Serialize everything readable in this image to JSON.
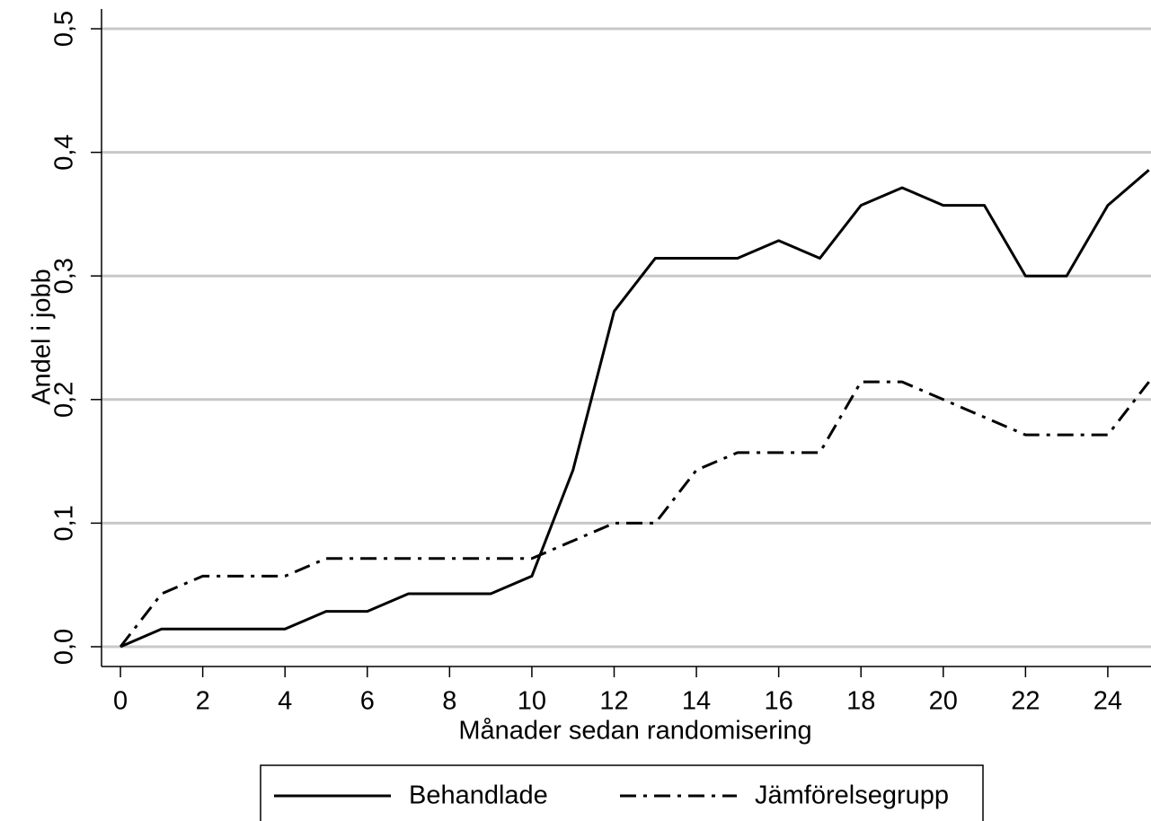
{
  "chart_data": {
    "type": "line",
    "x_label": "Månader sedan randomisering",
    "y_label": "Andel i jobb",
    "x": [
      0,
      1,
      2,
      3,
      4,
      5,
      6,
      7,
      8,
      9,
      10,
      11,
      12,
      13,
      14,
      15,
      16,
      17,
      18,
      19,
      20,
      21,
      22,
      23,
      24,
      25
    ],
    "series": [
      {
        "name": "Behandlade",
        "color": "#000000",
        "line_style": "solid",
        "values": [
          0,
          0.0143,
          0.0143,
          0.0143,
          0.0143,
          0.0286,
          0.0286,
          0.0429,
          0.0429,
          0.0429,
          0.0571,
          0.1429,
          0.2714,
          0.3143,
          0.3143,
          0.3143,
          0.3286,
          0.3143,
          0.3571,
          0.3714,
          0.3571,
          0.3571,
          0.3,
          0.3,
          0.3571,
          0.3857
        ]
      },
      {
        "name": "Jämförelsegrupp",
        "color": "#000000",
        "line_style": "dashdot",
        "values": [
          0,
          0.0429,
          0.0571,
          0.0571,
          0.0571,
          0.0714,
          0.0714,
          0.0714,
          0.0714,
          0.0714,
          0.0714,
          0.0857,
          0.1,
          0.1,
          0.1429,
          0.1571,
          0.1571,
          0.1571,
          0.2143,
          0.2143,
          0.2,
          0.1857,
          0.1714,
          0.1714,
          0.1714,
          0.2143
        ]
      }
    ],
    "xlim": [
      -0.46,
      25.05
    ],
    "ylim": [
      -0.016,
      0.516
    ],
    "xticks": [
      0,
      2,
      4,
      6,
      8,
      10,
      12,
      14,
      16,
      18,
      20,
      22,
      24
    ],
    "yticks": [
      {
        "value": 0,
        "label": "0,0"
      },
      {
        "value": 0.1,
        "label": "0,1"
      },
      {
        "value": 0.2,
        "label": "0,2"
      },
      {
        "value": 0.3,
        "label": "0,3"
      },
      {
        "value": 0.4,
        "label": "0,4"
      },
      {
        "value": 0.5,
        "label": "0,5"
      }
    ],
    "grid": true,
    "legend": "bottom"
  }
}
